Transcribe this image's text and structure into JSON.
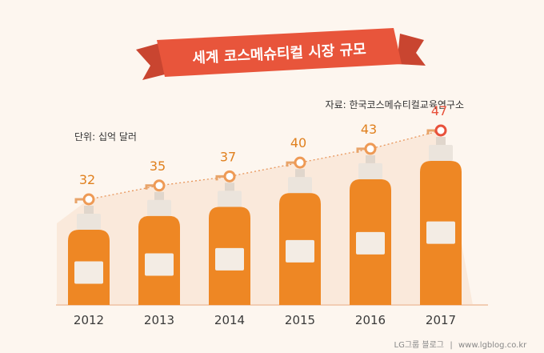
{
  "banner": {
    "title": "세계 코스메슈티컬 시장 규모"
  },
  "source": "자료: 한국코스메슈티컬교육연구소",
  "unit_label": "단위: 십억 달러",
  "footer": {
    "brand": "LG그룹 블로그",
    "separator": "|",
    "url": "www.lgblog.co.kr"
  },
  "colors": {
    "background": "#fdf6ef",
    "bottle": "#ee8724",
    "bottle_dark": "#e07a17",
    "cap": "#ebe4dc",
    "label": "#f3ece4",
    "value_text": "#e0801e",
    "highlight": "#e8513b",
    "banner": "#e8553b",
    "banner_dark": "#b63d2a",
    "year_text": "#3a3a3a",
    "trend_area": "#f9e6d6"
  },
  "chart_data": {
    "type": "bar",
    "categories": [
      "2012",
      "2013",
      "2014",
      "2015",
      "2016",
      "2017"
    ],
    "values": [
      32,
      35,
      37,
      40,
      43,
      47
    ],
    "value_labels": [
      "32",
      "35",
      "37",
      "40",
      "43",
      "47"
    ],
    "highlight_index": 5,
    "ylim": [
      0,
      47
    ],
    "trend_line": "dotted",
    "grid": false,
    "legend": "none"
  }
}
